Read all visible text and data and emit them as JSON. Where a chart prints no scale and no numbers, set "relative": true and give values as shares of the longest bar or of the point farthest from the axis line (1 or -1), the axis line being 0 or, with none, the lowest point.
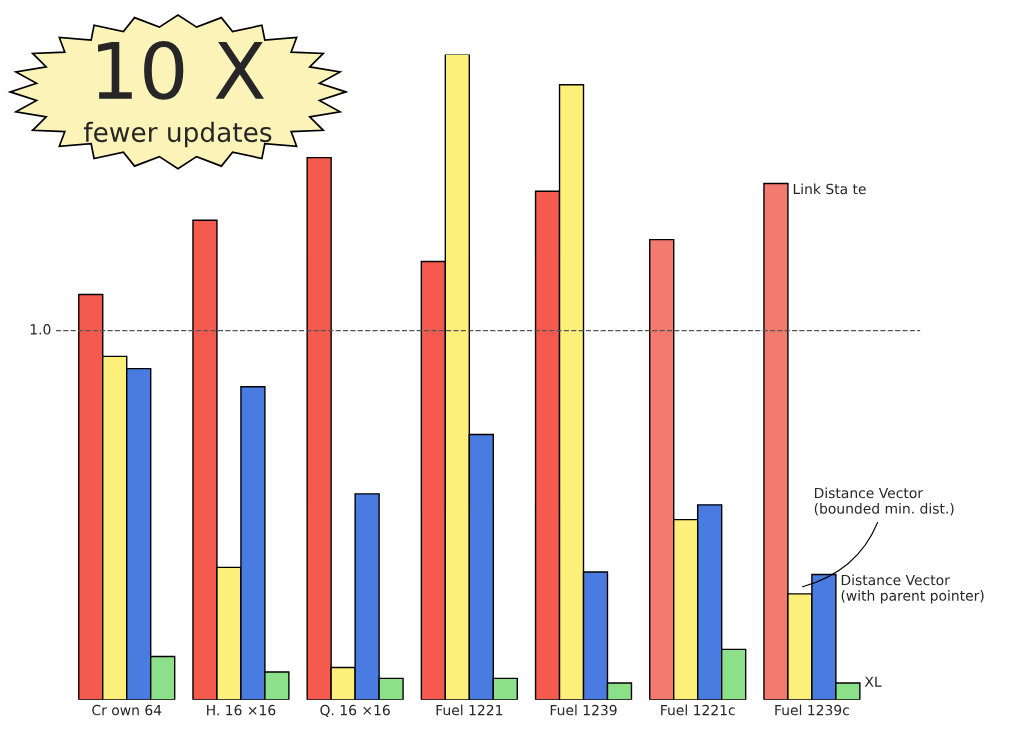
{
  "chart_data": {
    "type": "bar",
    "relative": true,
    "categories": [
      "Cr own 64",
      "H. 16 ×16",
      "Q. 16 ×16",
      "Fuel 1221",
      "Fuel 1239",
      "Fuel 1221c",
      "Fuel 1239c"
    ],
    "series": [
      {
        "name": "Link Sta te",
        "colors": [
          "#f55a4e",
          "#f55a4e",
          "#f55a4e",
          "#f55a4e",
          "#f55a4e",
          "#f27a6e",
          "#f27a6e"
        ],
        "values": [
          0.628,
          0.743,
          0.84,
          0.679,
          0.788,
          0.713,
          0.8
        ]
      },
      {
        "name": "Distance Vector\n(bounded min. dist.)",
        "color": "#fdf07a",
        "values": [
          0.532,
          0.205,
          0.05,
          1.0,
          0.953,
          0.279,
          0.164
        ]
      },
      {
        "name": "Distance Vector\n(with parent pointer)",
        "color": "#4a7be0",
        "values": [
          0.513,
          0.485,
          0.319,
          0.411,
          0.198,
          0.302,
          0.194
        ]
      },
      {
        "name": "XL",
        "color": "#8de08a",
        "values": [
          0.067,
          0.043,
          0.033,
          0.033,
          0.026,
          0.078,
          0.026
        ]
      }
    ],
    "ref_lines": [
      {
        "axis": "y",
        "value": 0.572,
        "line_style": "dashed",
        "color": "#555555"
      }
    ],
    "annotations": [
      "10 X",
      "fewer updates",
      "1.0"
    ],
    "legend": false,
    "grid": false
  }
}
